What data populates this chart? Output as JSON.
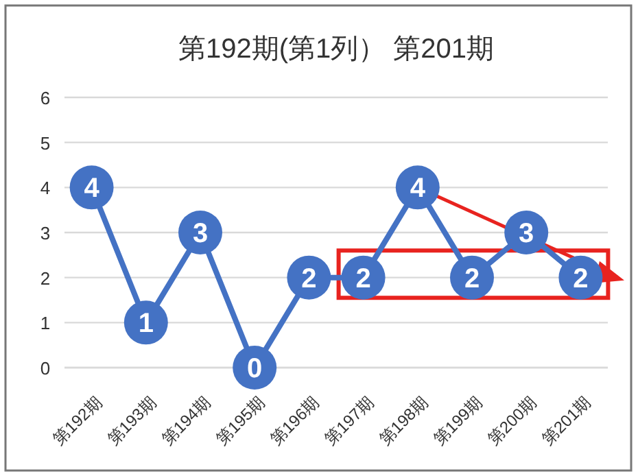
{
  "chart_data": {
    "type": "line",
    "title": "第192期(第1列） 第201期",
    "categories": [
      "第192期",
      "第193期",
      "第194期",
      "第195期",
      "第196期",
      "第197期",
      "第198期",
      "第199期",
      "第200期",
      "第201期"
    ],
    "values": [
      4,
      1,
      3,
      0,
      2,
      2,
      4,
      2,
      3,
      2
    ],
    "color": "#4472c4",
    "ylim": [
      0,
      6
    ],
    "yticks": [
      0,
      1,
      2,
      3,
      4,
      5,
      6
    ],
    "grid": "y",
    "marker": "circle",
    "data_labels": true
  }
}
